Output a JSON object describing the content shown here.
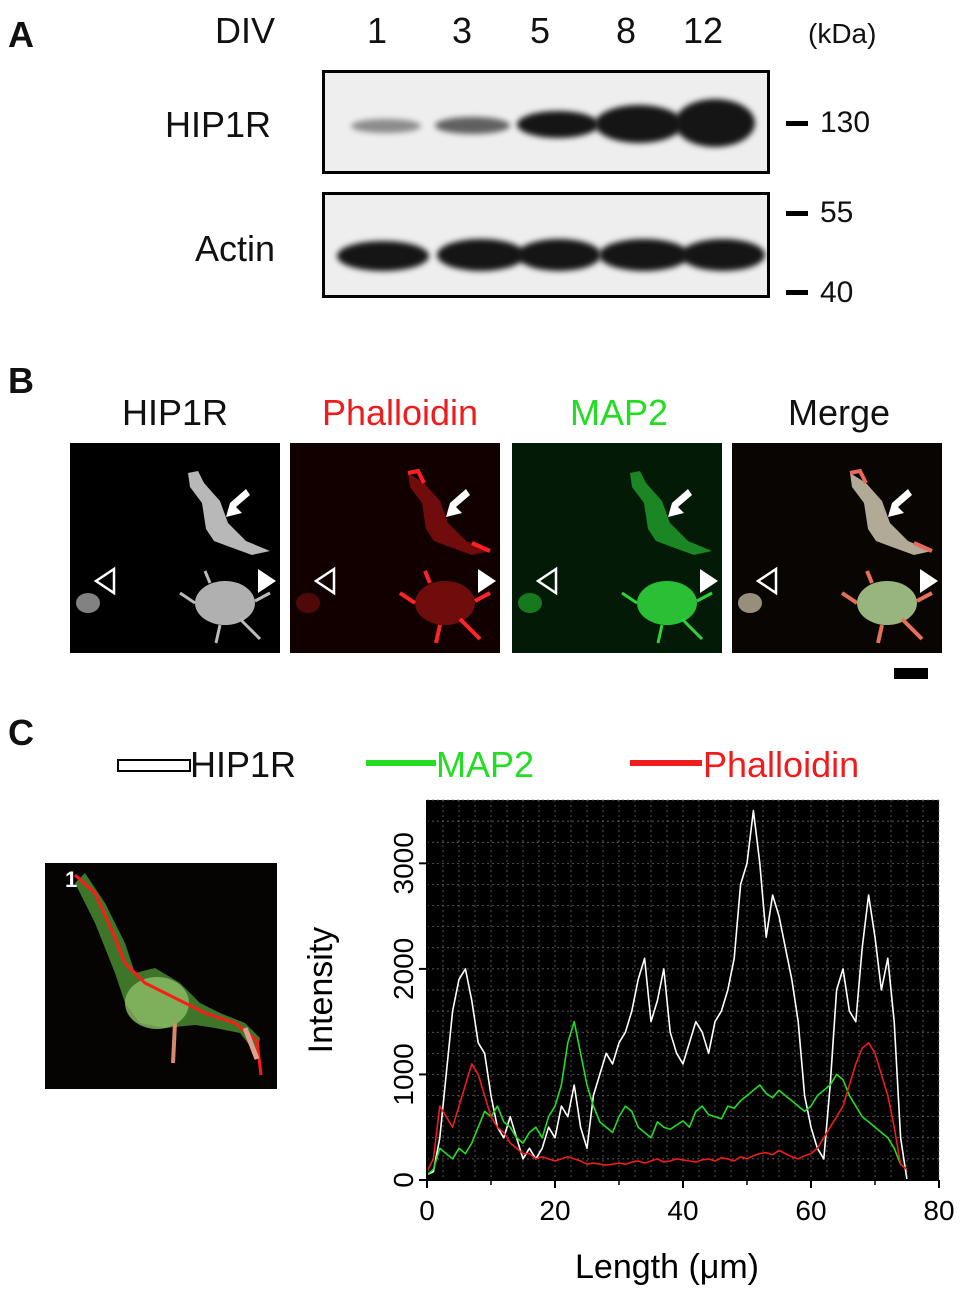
{
  "panel_a": {
    "letter": "A",
    "div_label": "DIV",
    "lanes": [
      "1",
      "3",
      "5",
      "8",
      "12"
    ],
    "units": "(kDa)",
    "rows": [
      "HIP1R",
      "Actin"
    ],
    "markers": [
      "130",
      "55",
      "40"
    ]
  },
  "panel_b": {
    "letter": "B",
    "channels": [
      {
        "name": "HIP1R",
        "color": "#222222"
      },
      {
        "name": "Phalloidin",
        "color": "#ee1c1c"
      },
      {
        "name": "MAP2",
        "color": "#22dd22"
      },
      {
        "name": "Merge",
        "color": "#222222"
      }
    ]
  },
  "panel_c": {
    "letter": "C",
    "inset_label": "1",
    "legend": [
      {
        "name": "HIP1R",
        "color": "#ffffff"
      },
      {
        "name": "MAP2",
        "color": "#22dd22"
      },
      {
        "name": "Phalloidin",
        "color": "#ee1c1c"
      }
    ]
  },
  "chart_data": {
    "type": "line",
    "xlabel": "Length (μm)",
    "ylabel": "Intensity",
    "xlim": [
      0,
      80
    ],
    "ylim": [
      0,
      3600
    ],
    "xticks": [
      0,
      20,
      40,
      60,
      80
    ],
    "yticks": [
      0,
      1000,
      2000,
      3000
    ],
    "grid": true,
    "background": "#000000",
    "series": [
      {
        "name": "HIP1R",
        "color": "#ffffff",
        "x": [
          0,
          1,
          2,
          3,
          4,
          5,
          6,
          7,
          8,
          9,
          10,
          11,
          12,
          13,
          14,
          15,
          16,
          17,
          18,
          19,
          20,
          21,
          22,
          23,
          24,
          25,
          26,
          27,
          28,
          29,
          30,
          31,
          32,
          33,
          34,
          35,
          36,
          37,
          38,
          39,
          40,
          41,
          42,
          43,
          44,
          45,
          46,
          47,
          48,
          49,
          50,
          51,
          52,
          53,
          54,
          55,
          56,
          57,
          58,
          59,
          60,
          61,
          62,
          63,
          64,
          65,
          66,
          67,
          68,
          69,
          70,
          71,
          72,
          73,
          74,
          75
        ],
        "y": [
          50,
          80,
          400,
          1000,
          1600,
          1900,
          2000,
          1700,
          1300,
          1200,
          800,
          500,
          400,
          600,
          400,
          200,
          300,
          200,
          300,
          500,
          400,
          700,
          600,
          900,
          500,
          300,
          800,
          1000,
          1200,
          1100,
          1300,
          1400,
          1600,
          1900,
          2100,
          1500,
          1700,
          2000,
          1400,
          1200,
          1100,
          1300,
          1500,
          1400,
          1200,
          1500,
          1600,
          1800,
          2100,
          2800,
          3000,
          3500,
          3000,
          2300,
          2700,
          2500,
          2200,
          1900,
          1500,
          800,
          500,
          300,
          200,
          900,
          1800,
          2000,
          1600,
          1500,
          2200,
          2700,
          2300,
          1800,
          2100,
          1500,
          400,
          0
        ]
      },
      {
        "name": "MAP2",
        "color": "#22dd22",
        "x": [
          0,
          1,
          2,
          3,
          4,
          5,
          6,
          7,
          8,
          9,
          10,
          11,
          12,
          13,
          14,
          15,
          16,
          17,
          18,
          19,
          20,
          21,
          22,
          23,
          24,
          25,
          26,
          27,
          28,
          29,
          30,
          31,
          32,
          33,
          34,
          35,
          36,
          37,
          38,
          39,
          40,
          41,
          42,
          43,
          44,
          45,
          46,
          47,
          48,
          49,
          50,
          51,
          52,
          53,
          54,
          55,
          56,
          57,
          58,
          59,
          60,
          61,
          62,
          63,
          64,
          65,
          66,
          67,
          68,
          69,
          70,
          71,
          72,
          73,
          74,
          75
        ],
        "y": [
          50,
          100,
          300,
          250,
          200,
          300,
          250,
          350,
          500,
          650,
          600,
          700,
          550,
          500,
          400,
          350,
          450,
          500,
          400,
          600,
          700,
          900,
          1300,
          1500,
          1200,
          900,
          700,
          550,
          500,
          450,
          600,
          700,
          650,
          500,
          450,
          400,
          550,
          500,
          480,
          520,
          560,
          500,
          650,
          700,
          620,
          600,
          580,
          700,
          680,
          750,
          800,
          850,
          900,
          820,
          780,
          850,
          800,
          750,
          700,
          650,
          700,
          800,
          850,
          900,
          1000,
          950,
          800,
          700,
          600,
          550,
          500,
          450,
          400,
          300,
          150,
          100
        ]
      },
      {
        "name": "Phalloidin",
        "color": "#ee1c1c",
        "x": [
          0,
          1,
          2,
          3,
          4,
          5,
          6,
          7,
          8,
          9,
          10,
          11,
          12,
          13,
          14,
          15,
          16,
          17,
          18,
          19,
          20,
          21,
          22,
          23,
          24,
          25,
          26,
          27,
          28,
          29,
          30,
          31,
          32,
          33,
          34,
          35,
          36,
          37,
          38,
          39,
          40,
          41,
          42,
          43,
          44,
          45,
          46,
          47,
          48,
          49,
          50,
          51,
          52,
          53,
          54,
          55,
          56,
          57,
          58,
          59,
          60,
          61,
          62,
          63,
          64,
          65,
          66,
          67,
          68,
          69,
          70,
          71,
          72,
          73,
          74,
          75
        ],
        "y": [
          80,
          200,
          700,
          600,
          500,
          700,
          900,
          1100,
          1000,
          800,
          600,
          500,
          450,
          350,
          300,
          250,
          250,
          200,
          220,
          200,
          180,
          200,
          220,
          200,
          180,
          150,
          160,
          150,
          140,
          150,
          160,
          150,
          170,
          180,
          160,
          180,
          200,
          170,
          180,
          200,
          190,
          180,
          170,
          190,
          200,
          180,
          210,
          200,
          180,
          220,
          200,
          230,
          250,
          260,
          240,
          280,
          250,
          220,
          200,
          230,
          250,
          300,
          400,
          500,
          600,
          700,
          900,
          1100,
          1250,
          1300,
          1200,
          1000,
          800,
          500,
          150,
          100
        ]
      }
    ]
  }
}
